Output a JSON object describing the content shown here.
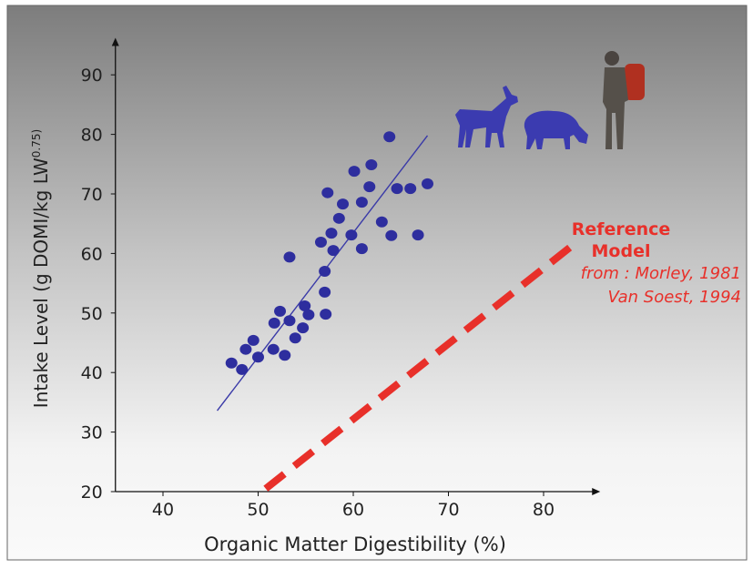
{
  "chart_data": {
    "type": "scatter",
    "xlabel": "Organic Matter Digestibility (%)",
    "ylabel": {
      "text": "Intake Level (g DOMI/kg LW",
      "superscript": "0.75)"
    },
    "xlim": [
      35,
      85
    ],
    "ylim": [
      20,
      95
    ],
    "xticks": [
      40,
      50,
      60,
      70,
      80
    ],
    "yticks": [
      20,
      30,
      40,
      50,
      60,
      70,
      80,
      90
    ],
    "points": {
      "color": "#2e2e9e",
      "x": [
        47.2,
        48.3,
        48.7,
        49.5,
        50.0,
        51.6,
        51.7,
        52.3,
        52.8,
        53.3,
        53.3,
        53.9,
        54.7,
        54.9,
        55.3,
        56.6,
        57.0,
        57.0,
        57.1,
        57.3,
        57.7,
        57.9,
        58.5,
        58.9,
        59.8,
        60.1,
        60.9,
        60.9,
        61.7,
        61.9,
        63.0,
        63.8,
        64.0,
        64.6,
        66.0,
        66.8,
        67.8
      ],
      "y": [
        41.6,
        40.5,
        43.9,
        45.4,
        42.6,
        43.9,
        48.3,
        50.3,
        42.9,
        48.7,
        59.4,
        45.8,
        47.5,
        51.2,
        49.7,
        61.9,
        53.5,
        57.0,
        49.8,
        70.2,
        63.4,
        60.5,
        65.9,
        68.3,
        63.1,
        73.8,
        60.8,
        68.6,
        71.2,
        74.9,
        65.3,
        79.6,
        63.0,
        70.9,
        70.9,
        63.1,
        71.7
      ]
    },
    "fit_line": {
      "color": "#3a3aa8",
      "x": [
        45.7,
        67.8
      ],
      "y": [
        33.6,
        79.8
      ]
    },
    "reference_line": {
      "color": "#e8302a",
      "dashed": true,
      "x": [
        50.8,
        83.0
      ],
      "y": [
        20.5,
        61.3
      ]
    },
    "reference_label": [
      "Reference",
      "Model"
    ],
    "sources": [
      "from : Morley, 1981",
      "Van Soest, 1994"
    ]
  }
}
